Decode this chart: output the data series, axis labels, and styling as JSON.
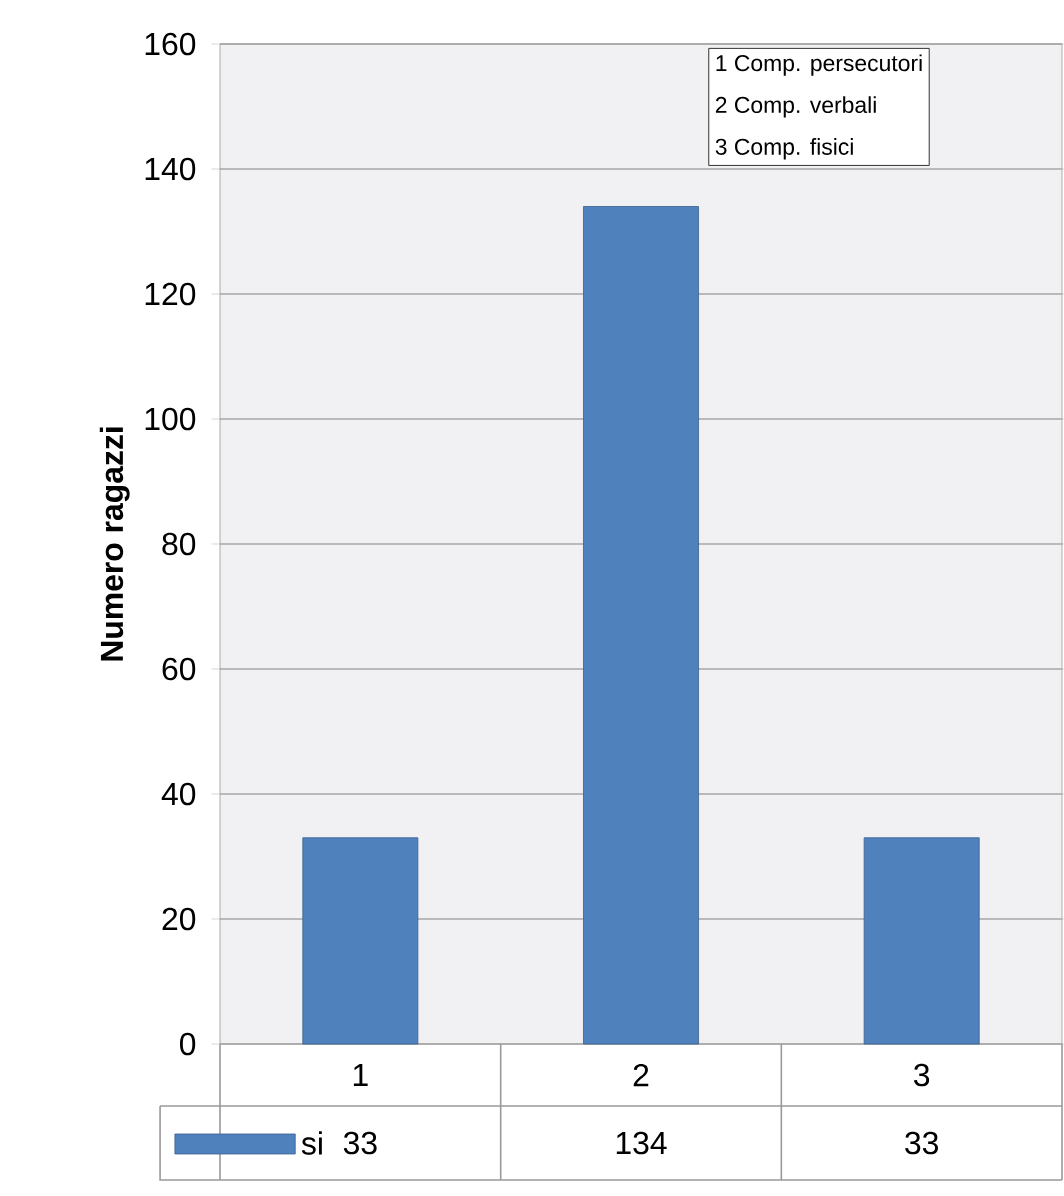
{
  "chart_data": {
    "type": "bar",
    "ylabel": "Numero ragazzi",
    "categories": [
      "1",
      "2",
      "3"
    ],
    "series": [
      {
        "name": "si",
        "color": "#4f81bd",
        "values": [
          33,
          134,
          33
        ]
      }
    ],
    "ylim": [
      0,
      160
    ],
    "yticks": [
      0,
      20,
      40,
      60,
      80,
      100,
      120,
      140,
      160
    ],
    "grid": "y",
    "legend": "bottom",
    "data_labels": true,
    "annotations": [
      "1 Comp. persecutori",
      "2 Comp. verbali",
      "3 Comp. fisici"
    ]
  }
}
